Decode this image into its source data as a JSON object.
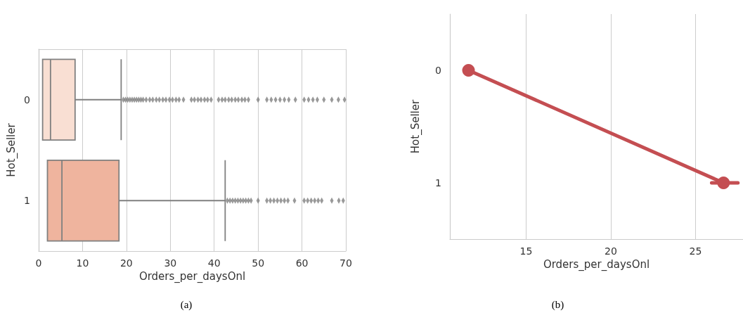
{
  "chart_data": [
    {
      "type": "box",
      "orientation": "horizontal",
      "categories": [
        "0",
        "1"
      ],
      "xlabel": "Orders_per_daysOnl",
      "ylabel": "Hot_Seller",
      "colors": [
        "#f9dfd3",
        "#efb49e"
      ],
      "boxes": [
        {
          "low": 0.9,
          "q1": 0.9,
          "median": 2.7,
          "q3": 8.3,
          "high": 18.8,
          "outliers": [
            19.3,
            19.8,
            20.3,
            20.8,
            21.3,
            21.8,
            22.3,
            22.8,
            23.3,
            23.8,
            24.5,
            25.3,
            26,
            26.8,
            27.5,
            28.3,
            29,
            29.8,
            30.5,
            31.3,
            32,
            33,
            34.8,
            35.5,
            36.3,
            37,
            37.8,
            38.5,
            39.3,
            41,
            41.8,
            42.5,
            43.3,
            44,
            44.8,
            45.5,
            46.3,
            47,
            47.8,
            50,
            52,
            53,
            54,
            55,
            56,
            57,
            58.5,
            60.5,
            61.5,
            62.5,
            63.5,
            65,
            66.8,
            68.3,
            69.7
          ]
        },
        {
          "low": 2,
          "q1": 2,
          "median": 5.3,
          "q3": 18.3,
          "high": 42.5,
          "outliers": [
            43,
            43.6,
            44.2,
            44.8,
            45.4,
            46,
            46.6,
            47.2,
            47.8,
            48.4,
            50,
            52,
            52.8,
            53.6,
            54.4,
            55.2,
            56,
            56.8,
            58.3,
            60.5,
            61.3,
            62.1,
            62.9,
            63.7,
            64.5,
            66.8,
            68.4,
            69.4
          ]
        }
      ],
      "xlim": [
        0,
        70
      ],
      "xticks": [
        0,
        10,
        20,
        30,
        40,
        50,
        60,
        70
      ],
      "grid": "x",
      "annotations": [
        "(a)"
      ]
    },
    {
      "type": "line",
      "orientation": "horizontal",
      "categories": [
        "0",
        "1"
      ],
      "values": [
        11.6,
        26.65
      ],
      "errors": [
        null,
        [
          25.95,
          27.5
        ]
      ],
      "color": "#c44e52",
      "marker": "circle",
      "xlabel": "Orders_per_daysOnl",
      "ylabel": "Hot_Seller",
      "xlim": [
        10.5,
        27.8
      ],
      "xticks": [
        15,
        20,
        25
      ],
      "grid": "x",
      "annotations": [
        "(b)"
      ]
    }
  ]
}
